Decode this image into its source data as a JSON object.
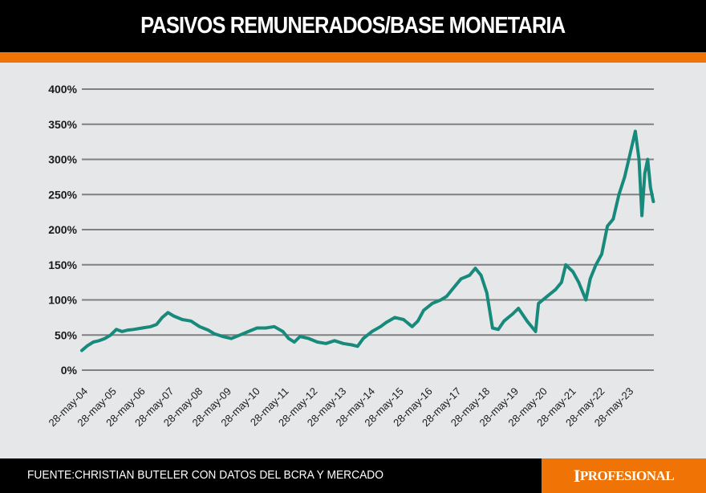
{
  "header": {
    "title": "PASIVOS REMUNERADOS/BASE MONETARIA"
  },
  "footer": {
    "source": "FUENTE:CHRISTIAN BUTELER CON DATOS DEL BCRA Y MERCADO",
    "logo": "iPROFESIONAL"
  },
  "colors": {
    "line": "#178a7c",
    "header": "#000000",
    "accent": "#f07405",
    "background": "#e6e7e8",
    "grid": "#808080"
  },
  "chart_data": {
    "type": "line",
    "title": "PASIVOS REMUNERADOS/BASE MONETARIA",
    "xlabel": "",
    "ylabel": "",
    "ylim": [
      0,
      400
    ],
    "grid": true,
    "yticks": [
      "0%",
      "50%",
      "100%",
      "150%",
      "200%",
      "250%",
      "300%",
      "350%",
      "400%"
    ],
    "xticks": [
      "28-may-04",
      "28-may-05",
      "28-may-06",
      "28-may-07",
      "28-may-08",
      "28-may-09",
      "28-may-10",
      "28-may-11",
      "28-may-12",
      "28-may-13",
      "28-may-14",
      "28-may-15",
      "28-may-16",
      "28-may-17",
      "28-may-18",
      "28-may-19",
      "28-may-20",
      "28-may-21",
      "28-may-22",
      "28-may-23"
    ],
    "series": [
      {
        "x_unit": "year",
        "points": [
          [
            2004.4,
            28
          ],
          [
            2004.6,
            35
          ],
          [
            2004.8,
            40
          ],
          [
            2005.0,
            42
          ],
          [
            2005.2,
            45
          ],
          [
            2005.4,
            50
          ],
          [
            2005.6,
            58
          ],
          [
            2005.8,
            55
          ],
          [
            2006.0,
            57
          ],
          [
            2006.2,
            58
          ],
          [
            2006.5,
            60
          ],
          [
            2006.8,
            62
          ],
          [
            2007.0,
            65
          ],
          [
            2007.2,
            75
          ],
          [
            2007.4,
            82
          ],
          [
            2007.6,
            77
          ],
          [
            2007.9,
            72
          ],
          [
            2008.2,
            70
          ],
          [
            2008.5,
            62
          ],
          [
            2008.8,
            57
          ],
          [
            2009.0,
            52
          ],
          [
            2009.3,
            48
          ],
          [
            2009.6,
            45
          ],
          [
            2009.9,
            50
          ],
          [
            2010.2,
            55
          ],
          [
            2010.5,
            60
          ],
          [
            2010.8,
            60
          ],
          [
            2011.1,
            62
          ],
          [
            2011.4,
            55
          ],
          [
            2011.6,
            45
          ],
          [
            2011.8,
            40
          ],
          [
            2012.0,
            48
          ],
          [
            2012.3,
            45
          ],
          [
            2012.6,
            40
          ],
          [
            2012.9,
            38
          ],
          [
            2013.2,
            42
          ],
          [
            2013.5,
            38
          ],
          [
            2013.8,
            36
          ],
          [
            2014.0,
            34
          ],
          [
            2014.2,
            45
          ],
          [
            2014.5,
            55
          ],
          [
            2014.8,
            62
          ],
          [
            2015.0,
            68
          ],
          [
            2015.3,
            75
          ],
          [
            2015.6,
            72
          ],
          [
            2015.9,
            62
          ],
          [
            2016.1,
            70
          ],
          [
            2016.3,
            85
          ],
          [
            2016.6,
            95
          ],
          [
            2016.9,
            100
          ],
          [
            2017.1,
            105
          ],
          [
            2017.3,
            115
          ],
          [
            2017.6,
            130
          ],
          [
            2017.9,
            135
          ],
          [
            2018.1,
            145
          ],
          [
            2018.3,
            135
          ],
          [
            2018.5,
            110
          ],
          [
            2018.7,
            60
          ],
          [
            2018.9,
            58
          ],
          [
            2019.1,
            70
          ],
          [
            2019.4,
            80
          ],
          [
            2019.6,
            88
          ],
          [
            2019.9,
            70
          ],
          [
            2020.2,
            55
          ],
          [
            2020.3,
            95
          ],
          [
            2020.6,
            105
          ],
          [
            2020.9,
            115
          ],
          [
            2021.1,
            125
          ],
          [
            2021.25,
            150
          ],
          [
            2021.5,
            140
          ],
          [
            2021.7,
            125
          ],
          [
            2021.95,
            100
          ],
          [
            2022.1,
            130
          ],
          [
            2022.3,
            150
          ],
          [
            2022.5,
            165
          ],
          [
            2022.7,
            205
          ],
          [
            2022.9,
            215
          ],
          [
            2023.1,
            250
          ],
          [
            2023.3,
            275
          ],
          [
            2023.5,
            310
          ],
          [
            2023.67,
            340
          ],
          [
            2023.8,
            300
          ],
          [
            2023.9,
            220
          ],
          [
            2024.0,
            280
          ],
          [
            2024.1,
            300
          ],
          [
            2024.2,
            260
          ],
          [
            2024.3,
            240
          ]
        ]
      }
    ]
  }
}
